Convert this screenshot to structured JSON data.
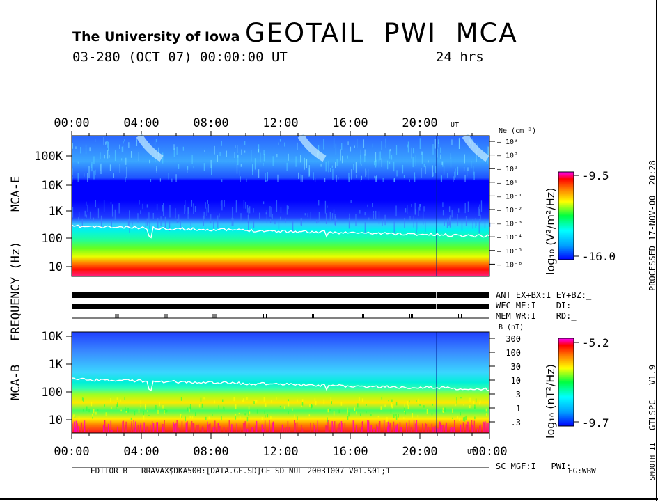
{
  "header": {
    "institution": "The University of Iowa",
    "title": "GEOTAIL  PWI  MCA",
    "date_line": "03-280 (OCT 07) 00:00:00 UT",
    "span": "24 hrs"
  },
  "side": {
    "processed": "PROCESSED 17-NOV-00  20:28",
    "version": "GTLSPC   V1.9",
    "smooth": "SMOOTH 11"
  },
  "axes": {
    "time_ticks": [
      "00:00",
      "04:00",
      "08:00",
      "12:00",
      "16:00",
      "20:00"
    ],
    "time_ticks_bottom": [
      "00:00",
      "04:00",
      "08:00",
      "12:00",
      "16:00",
      "20:00",
      "00:00"
    ],
    "ut_label": "UT",
    "freq_axis_label": "FREQUENCY (Hz)",
    "mca_e_label": "MCA-E",
    "mca_b_label": "MCA-B",
    "e_freq_ticks": [
      "100K",
      "10K",
      "1K",
      "100",
      "10"
    ],
    "b_freq_ticks": [
      "10K",
      "1K",
      "100",
      "10"
    ]
  },
  "ne_axis": {
    "title": "Ne (cm⁻³)",
    "ticks": [
      "10³",
      "10²",
      "10¹",
      "10⁰",
      "10⁻¹",
      "10⁻²",
      "10⁻³",
      "10⁻⁴",
      "10⁻⁵",
      "10⁻⁶"
    ]
  },
  "b_axis": {
    "title": "B (nT)",
    "ticks": [
      "300",
      "100",
      "30",
      "10",
      "3",
      "1",
      ".3"
    ]
  },
  "colorbars": {
    "e": {
      "unit": "log₁₀ (V²/m²/Hz)",
      "max": "-9.5",
      "min": "-16.0"
    },
    "b": {
      "unit": "log₁₀ (nT²/Hz)",
      "max": "-5.2",
      "min": "-9.7"
    }
  },
  "status": {
    "ant": "ANT EX+BX:I EY+BZ:_",
    "wfc": "WFC ME:I    DI:_",
    "mem": "MEM WR:I    RD:_",
    "sc": "SC MGF:I   PWI:_"
  },
  "footer": {
    "editor": "EDITOR B",
    "path": "RRAVAX$DKA500:[DATA.GE.SD]GE_SD_NUL_20031007_V01.S01;1",
    "fg": "FG:WBW"
  },
  "chart_data": [
    {
      "type": "heatmap",
      "title": "MCA-E",
      "x_range_hours": [
        0,
        24
      ],
      "y_scale": "log",
      "y_ticks_hz": [
        100000,
        10000,
        1000,
        100,
        10
      ],
      "colorbar_range": [
        -16.0,
        -9.5
      ],
      "colorbar_unit": "log10 (V2/m2/Hz)",
      "bands": [
        {
          "freq_range_hz": [
            4,
            14
          ],
          "level": "high (red/magenta)"
        },
        {
          "freq_range_hz": [
            14,
            50
          ],
          "level": "yellow-green"
        },
        {
          "freq_range_hz": [
            50,
            200
          ],
          "level": "cyan"
        },
        {
          "freq_range_hz": [
            200,
            10000
          ],
          "level": "low (blue)"
        },
        {
          "freq_range_hz": [
            10000,
            400000
          ],
          "level": "low-medium (blue/cyan with bursts)"
        }
      ],
      "overlay_line": "Ne trace near 150-250 Hz"
    },
    {
      "type": "heatmap",
      "title": "MCA-B",
      "x_range_hours": [
        0,
        24
      ],
      "y_scale": "log",
      "y_ticks_hz": [
        10000,
        1000,
        100,
        10
      ],
      "colorbar_range": [
        -9.7,
        -5.2
      ],
      "colorbar_unit": "log10 (nT2/Hz)",
      "bands": [
        {
          "freq_range_hz": [
            4,
            12
          ],
          "level": "high (red/magenta)"
        },
        {
          "freq_range_hz": [
            12,
            60
          ],
          "level": "yellow-green"
        },
        {
          "freq_range_hz": [
            60,
            800
          ],
          "level": "cyan"
        },
        {
          "freq_range_hz": [
            800,
            16000
          ],
          "level": "low (blue/cyan)"
        }
      ],
      "overlay_line": "B trace near 150-250 Hz"
    }
  ]
}
